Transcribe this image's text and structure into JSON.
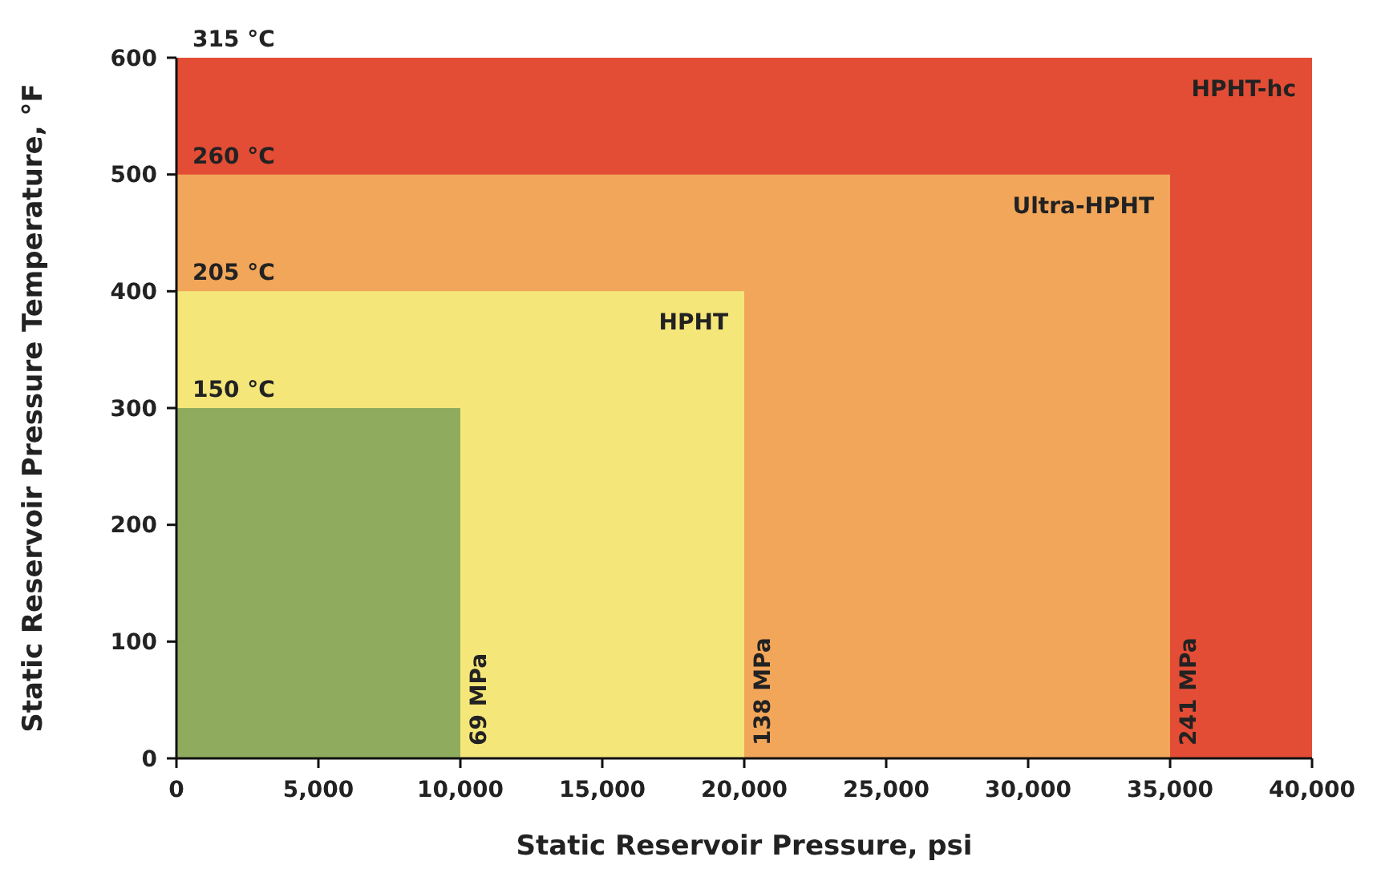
{
  "chart_data": {
    "type": "area",
    "xlabel": "Static Reservoir Pressure, psi",
    "ylabel": "Static Reservoir Pressure Temperature, °F",
    "series": [
      {
        "name": "HPHT-hc",
        "color": "#e34d35",
        "x": [
          0,
          40000
        ],
        "values": [
          600,
          600
        ]
      },
      {
        "name": "Ultra-HPHT",
        "color": "#f2a65a",
        "x": [
          0,
          35000
        ],
        "values": [
          500,
          500
        ]
      },
      {
        "name": "HPHT",
        "color": "#f5e67a",
        "x": [
          0,
          20000
        ],
        "values": [
          400,
          400
        ]
      },
      {
        "color": "#8fac5e",
        "x": [
          0,
          10000
        ],
        "values": [
          300,
          300
        ]
      }
    ],
    "xlim": [
      0,
      40000
    ],
    "ylim": [
      0,
      600
    ],
    "xticks": [
      0,
      {
        "value": 5000,
        "label": "5,000"
      },
      {
        "value": 10000,
        "label": "10,000"
      },
      {
        "value": 15000,
        "label": "15,000"
      },
      {
        "value": 20000,
        "label": "20,000"
      },
      {
        "value": 25000,
        "label": "25,000"
      },
      {
        "value": 30000,
        "label": "30,000"
      },
      {
        "value": 35000,
        "label": "35,000"
      },
      {
        "value": 40000,
        "label": "40,000"
      }
    ],
    "yticks": [
      0,
      100,
      200,
      300,
      400,
      500,
      600
    ],
    "annotations": [
      {
        "text": "315 °C",
        "x": 0,
        "y": 600
      },
      {
        "text": "260 °C",
        "x": 0,
        "y": 500
      },
      {
        "text": "205 °C",
        "x": 0,
        "y": 400
      },
      {
        "text": "150 °C",
        "x": 0,
        "y": 300
      },
      {
        "text": "69 MPa",
        "x": 10000,
        "y": 0
      },
      {
        "text": "138 MPa",
        "x": 20000,
        "y": 0
      },
      {
        "text": "241 MPa",
        "x": 35000,
        "y": 0
      }
    ],
    "grid": false
  }
}
